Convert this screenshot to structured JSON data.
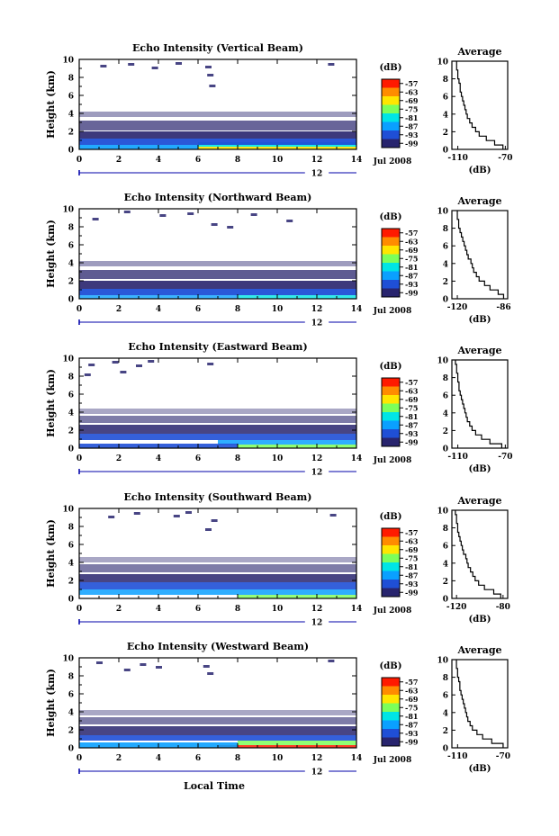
{
  "chart_data": [
    {
      "type": "heatmap",
      "title": "Echo Intensity (Vertical Beam)",
      "ylabel": "Height (km)",
      "xlim": [
        0,
        14
      ],
      "ylim": [
        0,
        10
      ],
      "x_ticks": [
        "0",
        "2",
        "4",
        "6",
        "8",
        "10",
        "12",
        "14"
      ],
      "y_ticks": [
        "0",
        "2",
        "4",
        "6",
        "8",
        "10"
      ],
      "date_day": "12",
      "date_label": "Jul 2008",
      "colorbar": {
        "unit": "(dB)",
        "ticks": [
          "-57",
          "-63",
          "-69",
          "-75",
          "-81",
          "-87",
          "-93",
          "-99"
        ]
      },
      "profile": {
        "title": "Average",
        "xlabel": "(dB)",
        "x_ticks": [
          "-110",
          "-70"
        ],
        "xlim": [
          -115,
          -68
        ],
        "heights": [
          0,
          0.5,
          1,
          1.5,
          2,
          2.5,
          3,
          3.5,
          4,
          4.5,
          5,
          5.5,
          6,
          6.5,
          7,
          7.5,
          8,
          8.5,
          9,
          9.5
        ],
        "values": [
          -72,
          -79,
          -86,
          -92,
          -95,
          -98,
          -100,
          -102,
          -103,
          -104,
          -105,
          -106,
          -107,
          -108,
          -108,
          -109,
          -110,
          -110,
          -111,
          -111
        ]
      },
      "bands": [
        {
          "h": [
            0,
            0.3
          ],
          "x": [
            6,
            14
          ],
          "level": "-69",
          "opacity": 0.9
        },
        {
          "h": [
            0.3,
            0.8
          ],
          "x": [
            6,
            14
          ],
          "level": "-81",
          "opacity": 0.9
        },
        {
          "h": [
            0,
            0.5
          ],
          "x": [
            0,
            6
          ],
          "level": "-87",
          "opacity": 0.9
        },
        {
          "h": [
            0.5,
            1.2
          ],
          "x": [
            0,
            14
          ],
          "level": "-93",
          "opacity": 0.95
        },
        {
          "h": [
            1.2,
            2.0
          ],
          "x": [
            0,
            14
          ],
          "level": "-99",
          "opacity": 0.9
        },
        {
          "h": [
            2.1,
            3.2
          ],
          "x": [
            0,
            14
          ],
          "level": "-99",
          "opacity": 0.7
        },
        {
          "h": [
            3.6,
            4.2
          ],
          "x": [
            0,
            14
          ],
          "level": "-99",
          "opacity": 0.45
        }
      ],
      "sparse": [
        [
          1.2,
          9.2
        ],
        [
          2.6,
          9.4
        ],
        [
          3.8,
          9.0
        ],
        [
          5.0,
          9.5
        ],
        [
          6.5,
          9.1
        ],
        [
          6.6,
          8.2
        ],
        [
          6.7,
          7.0
        ],
        [
          12.7,
          9.4
        ]
      ]
    },
    {
      "type": "heatmap",
      "title": "Echo Intensity (Northward Beam)",
      "ylabel": "Height (km)",
      "xlim": [
        0,
        14
      ],
      "ylim": [
        0,
        10
      ],
      "x_ticks": [
        "0",
        "2",
        "4",
        "6",
        "8",
        "10",
        "12",
        "14"
      ],
      "y_ticks": [
        "0",
        "2",
        "4",
        "6",
        "8",
        "10"
      ],
      "date_day": "12",
      "date_label": "Jul 2008",
      "colorbar": {
        "unit": "(dB)",
        "ticks": [
          "-57",
          "-63",
          "-69",
          "-75",
          "-81",
          "-87",
          "-93",
          "-99"
        ]
      },
      "profile": {
        "title": "Average",
        "xlabel": "(dB)",
        "x_ticks": [
          "-120",
          "-86"
        ],
        "xlim": [
          -124,
          -83
        ],
        "heights": [
          0,
          0.5,
          1,
          1.5,
          2,
          2.5,
          3,
          3.5,
          4,
          4.5,
          5,
          5.5,
          6,
          6.5,
          7,
          7.5,
          8,
          8.5,
          9,
          9.5
        ],
        "values": [
          -86,
          -90,
          -96,
          -100,
          -104,
          -106,
          -108,
          -109,
          -110,
          -112,
          -113,
          -114,
          -115,
          -116,
          -117,
          -118,
          -119,
          -119,
          -120,
          -120
        ]
      },
      "bands": [
        {
          "h": [
            0,
            0.4
          ],
          "x": [
            8,
            14
          ],
          "level": "-81",
          "opacity": 0.8
        },
        {
          "h": [
            0,
            0.4
          ],
          "x": [
            0,
            8
          ],
          "level": "-87",
          "opacity": 0.8
        },
        {
          "h": [
            0.4,
            1.1
          ],
          "x": [
            0,
            14
          ],
          "level": "-93",
          "opacity": 0.95
        },
        {
          "h": [
            1.1,
            2.0
          ],
          "x": [
            0,
            14
          ],
          "level": "-99",
          "opacity": 0.9
        },
        {
          "h": [
            2.2,
            3.2
          ],
          "x": [
            0,
            14
          ],
          "level": "-99",
          "opacity": 0.75
        },
        {
          "h": [
            3.6,
            4.2
          ],
          "x": [
            0,
            14
          ],
          "level": "-99",
          "opacity": 0.45
        }
      ],
      "sparse": [
        [
          0.8,
          8.8
        ],
        [
          2.4,
          9.6
        ],
        [
          4.2,
          9.2
        ],
        [
          5.6,
          9.4
        ],
        [
          6.8,
          8.2
        ],
        [
          7.6,
          7.9
        ],
        [
          8.8,
          9.3
        ],
        [
          10.6,
          8.6
        ]
      ]
    },
    {
      "type": "heatmap",
      "title": "Echo Intensity (Eastward Beam)",
      "ylabel": "Height (km)",
      "xlim": [
        0,
        14
      ],
      "ylim": [
        0,
        10
      ],
      "x_ticks": [
        "0",
        "2",
        "4",
        "6",
        "8",
        "10",
        "12",
        "14"
      ],
      "y_ticks": [
        "0",
        "2",
        "4",
        "6",
        "8",
        "10"
      ],
      "date_day": "12",
      "date_label": "Jul 2008",
      "colorbar": {
        "unit": "(dB)",
        "ticks": [
          "-57",
          "-63",
          "-69",
          "-75",
          "-81",
          "-87",
          "-93",
          "-99"
        ]
      },
      "profile": {
        "title": "Average",
        "xlabel": "(dB)",
        "x_ticks": [
          "-110",
          "-70"
        ],
        "xlim": [
          -115,
          -68
        ],
        "heights": [
          0,
          0.5,
          1,
          1.5,
          2,
          2.5,
          3,
          3.5,
          4,
          4.5,
          5,
          5.5,
          6,
          6.5,
          7,
          7.5,
          8,
          8.5,
          9,
          9.5
        ],
        "values": [
          -73,
          -83,
          -90,
          -95,
          -98,
          -100,
          -102,
          -103,
          -104,
          -105,
          -106,
          -107,
          -108,
          -109,
          -109,
          -110,
          -110,
          -111,
          -111,
          -112
        ]
      },
      "bands": [
        {
          "h": [
            0,
            0.4
          ],
          "x": [
            8,
            14
          ],
          "level": "-75",
          "opacity": 0.85
        },
        {
          "h": [
            0.4,
            0.9
          ],
          "x": [
            7,
            14
          ],
          "level": "-87",
          "opacity": 0.85
        },
        {
          "h": [
            0,
            0.5
          ],
          "x": [
            0,
            8
          ],
          "level": "-93",
          "opacity": 0.9
        },
        {
          "h": [
            0.9,
            1.6
          ],
          "x": [
            0,
            14
          ],
          "level": "-93",
          "opacity": 0.9
        },
        {
          "h": [
            1.6,
            2.6
          ],
          "x": [
            0,
            14
          ],
          "level": "-99",
          "opacity": 0.85
        },
        {
          "h": [
            2.8,
            3.6
          ],
          "x": [
            0,
            14
          ],
          "level": "-99",
          "opacity": 0.6
        },
        {
          "h": [
            3.8,
            4.4
          ],
          "x": [
            0,
            14
          ],
          "level": "-99",
          "opacity": 0.4
        }
      ],
      "sparse": [
        [
          0.6,
          9.2
        ],
        [
          1.8,
          9.5
        ],
        [
          3.0,
          9.1
        ],
        [
          3.6,
          9.6
        ],
        [
          6.6,
          9.3
        ],
        [
          0.4,
          8.1
        ],
        [
          2.2,
          8.4
        ]
      ]
    },
    {
      "type": "heatmap",
      "title": "Echo Intensity (Southward Beam)",
      "ylabel": "Height (km)",
      "xlim": [
        0,
        14
      ],
      "ylim": [
        0,
        10
      ],
      "x_ticks": [
        "0",
        "2",
        "4",
        "6",
        "8",
        "10",
        "12",
        "14"
      ],
      "y_ticks": [
        "0",
        "2",
        "4",
        "6",
        "8",
        "10"
      ],
      "date_day": "12",
      "date_label": "Jul 2008",
      "colorbar": {
        "unit": "(dB)",
        "ticks": [
          "-57",
          "-63",
          "-69",
          "-75",
          "-81",
          "-87",
          "-93",
          "-99"
        ]
      },
      "profile": {
        "title": "Average",
        "xlabel": "(dB)",
        "x_ticks": [
          "-120",
          "-80"
        ],
        "xlim": [
          -124,
          -76
        ],
        "heights": [
          0,
          0.5,
          1,
          1.5,
          2,
          2.5,
          3,
          3.5,
          4,
          4.5,
          5,
          5.5,
          6,
          6.5,
          7,
          7.5,
          8,
          8.5,
          9,
          9.5
        ],
        "values": [
          -82,
          -88,
          -96,
          -101,
          -104,
          -106,
          -108,
          -110,
          -111,
          -112,
          -114,
          -115,
          -116,
          -117,
          -118,
          -119,
          -119,
          -120,
          -120,
          -121
        ]
      },
      "bands": [
        {
          "h": [
            0,
            0.4
          ],
          "x": [
            8,
            14
          ],
          "level": "-75",
          "opacity": 0.8
        },
        {
          "h": [
            0.4,
            1.0
          ],
          "x": [
            0,
            14
          ],
          "level": "-87",
          "opacity": 0.85
        },
        {
          "h": [
            1.0,
            1.8
          ],
          "x": [
            0,
            14
          ],
          "level": "-93",
          "opacity": 0.9
        },
        {
          "h": [
            1.8,
            2.7
          ],
          "x": [
            0,
            14
          ],
          "level": "-99",
          "opacity": 0.85
        },
        {
          "h": [
            2.9,
            3.8
          ],
          "x": [
            0,
            14
          ],
          "level": "-99",
          "opacity": 0.6
        },
        {
          "h": [
            4.0,
            4.6
          ],
          "x": [
            0,
            14
          ],
          "level": "-99",
          "opacity": 0.4
        }
      ],
      "sparse": [
        [
          1.6,
          9.0
        ],
        [
          2.9,
          9.4
        ],
        [
          4.9,
          9.1
        ],
        [
          5.5,
          9.5
        ],
        [
          6.8,
          8.6
        ],
        [
          6.5,
          7.6
        ],
        [
          12.8,
          9.2
        ]
      ]
    },
    {
      "type": "heatmap",
      "title": "Echo Intensity (Westward Beam)",
      "ylabel": "Height (km)",
      "xlabel": "Local Time",
      "xlim": [
        0,
        14
      ],
      "ylim": [
        0,
        10
      ],
      "x_ticks": [
        "0",
        "2",
        "4",
        "6",
        "8",
        "10",
        "12",
        "14"
      ],
      "y_ticks": [
        "0",
        "2",
        "4",
        "6",
        "8",
        "10"
      ],
      "date_day": "12",
      "date_label": "Jul 2008",
      "colorbar": {
        "unit": "(dB)",
        "ticks": [
          "-57",
          "-63",
          "-69",
          "-75",
          "-81",
          "-87",
          "-93",
          "-99"
        ]
      },
      "profile": {
        "title": "Average",
        "xlabel": "(dB)",
        "x_ticks": [
          "-110",
          "-70"
        ],
        "xlim": [
          -115,
          -66
        ],
        "heights": [
          0,
          0.5,
          1,
          1.5,
          2,
          2.5,
          3,
          3.5,
          4,
          4.5,
          5,
          5.5,
          6,
          6.5,
          7,
          7.5,
          8,
          8.5,
          9,
          9.5
        ],
        "values": [
          -70,
          -80,
          -88,
          -93,
          -97,
          -99,
          -101,
          -102,
          -103,
          -104,
          -105,
          -106,
          -107,
          -108,
          -108,
          -109,
          -110,
          -110,
          -111,
          -111
        ]
      },
      "bands": [
        {
          "h": [
            0,
            0.3
          ],
          "x": [
            7,
            14
          ],
          "level": "-57",
          "opacity": 0.85
        },
        {
          "h": [
            0.3,
            0.8
          ],
          "x": [
            8,
            14
          ],
          "level": "-75",
          "opacity": 0.85
        },
        {
          "h": [
            0,
            0.6
          ],
          "x": [
            0,
            8
          ],
          "level": "-87",
          "opacity": 0.9
        },
        {
          "h": [
            0.8,
            1.4
          ],
          "x": [
            0,
            14
          ],
          "level": "-93",
          "opacity": 0.9
        },
        {
          "h": [
            1.4,
            2.4
          ],
          "x": [
            0,
            14
          ],
          "level": "-99",
          "opacity": 0.85
        },
        {
          "h": [
            2.6,
            3.4
          ],
          "x": [
            0,
            14
          ],
          "level": "-99",
          "opacity": 0.6
        },
        {
          "h": [
            3.6,
            4.2
          ],
          "x": [
            0,
            14
          ],
          "level": "-99",
          "opacity": 0.4
        }
      ],
      "sparse": [
        [
          1.0,
          9.4
        ],
        [
          3.2,
          9.2
        ],
        [
          4.0,
          8.9
        ],
        [
          6.4,
          9.0
        ],
        [
          6.6,
          8.2
        ],
        [
          12.7,
          9.6
        ],
        [
          2.4,
          8.6
        ]
      ]
    }
  ]
}
